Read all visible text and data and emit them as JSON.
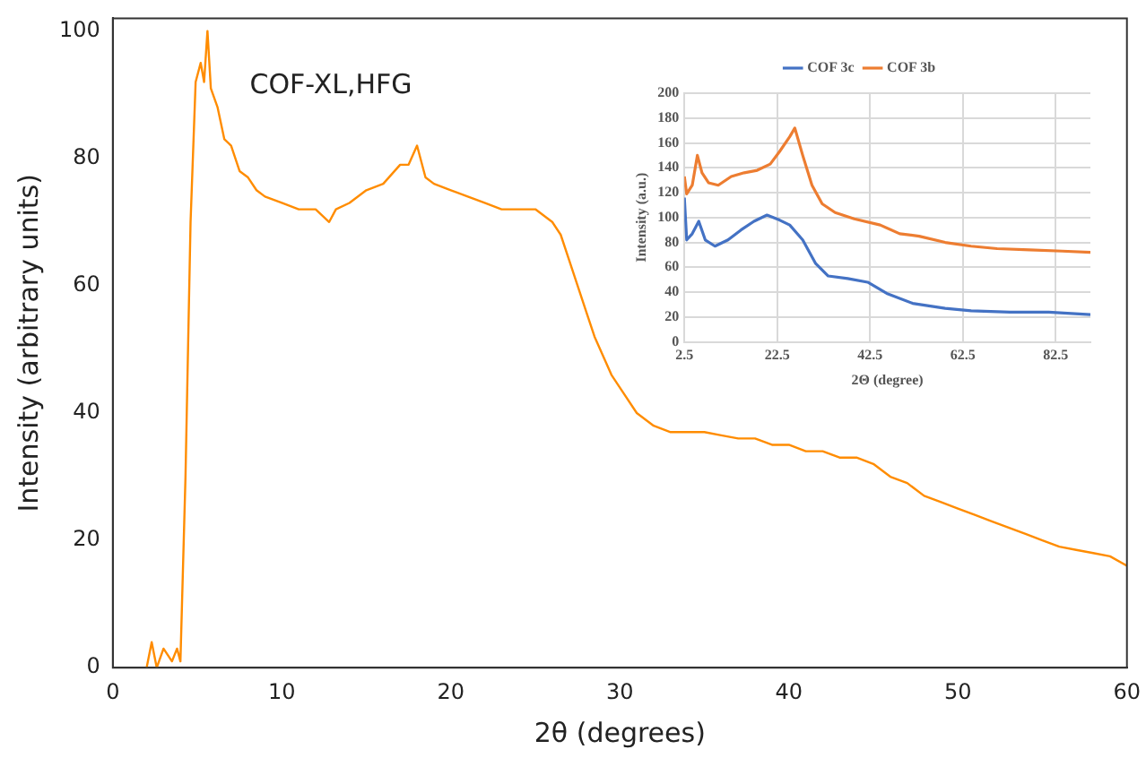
{
  "chart_data": [
    {
      "type": "line",
      "xlabel": "2θ (degrees)",
      "ylabel": "Intensity (arbitrary units)",
      "xlim": [
        0,
        60
      ],
      "xticks": [
        0,
        10,
        20,
        30,
        40,
        50,
        60
      ],
      "ylim": [
        0,
        102
      ],
      "yticks": [
        0,
        20,
        40,
        60,
        80,
        100
      ],
      "grid": false,
      "legend": false,
      "marker": "none",
      "line_style": "solid",
      "annotations": [
        "COF-XL,HFG"
      ],
      "series": [
        {
          "color": "#ff8c00",
          "x": [
            2.0,
            2.3,
            2.6,
            3.0,
            3.5,
            3.8,
            4.0,
            4.3,
            4.6,
            4.9,
            5.2,
            5.4,
            5.6,
            5.8,
            6.2,
            6.6,
            7,
            7.5,
            8,
            8.5,
            9,
            10,
            11,
            12,
            12.8,
            13.2,
            14,
            15,
            16,
            17,
            17.5,
            18,
            18.5,
            19,
            20,
            21,
            22,
            23,
            24,
            25,
            26,
            26.5,
            27,
            27.5,
            28,
            28.5,
            29,
            29.5,
            30,
            31,
            32,
            33,
            34,
            35,
            36,
            37,
            38,
            39,
            40,
            41,
            42,
            43,
            44,
            45,
            46,
            47,
            48,
            49,
            50,
            51,
            52,
            53,
            54,
            55,
            56,
            57,
            58,
            59,
            60
          ],
          "values": [
            0,
            4,
            0,
            3,
            1,
            3,
            1,
            30,
            70,
            92,
            95,
            92,
            100,
            91,
            88,
            83,
            82,
            78,
            77,
            75,
            74,
            73,
            72,
            72,
            70,
            72,
            73,
            75,
            76,
            79,
            79,
            82,
            77,
            76,
            75,
            74,
            73,
            72,
            72,
            72,
            70,
            68,
            64,
            60,
            56,
            52,
            49,
            46,
            44,
            40,
            38,
            37,
            37,
            37,
            36.5,
            36,
            36,
            35,
            35,
            34,
            34,
            33,
            33,
            32,
            30,
            29,
            27,
            26,
            25,
            24,
            23,
            22,
            21,
            20,
            19,
            18.5,
            18,
            17.5,
            16
          ]
        }
      ]
    },
    {
      "type": "line",
      "xlabel": "2Θ (degree)",
      "ylabel": "Intensity (a.u.)",
      "xlim": [
        2.5,
        90
      ],
      "xticks": [
        2.5,
        22.5,
        42.5,
        62.5,
        82.5
      ],
      "ylim": [
        0,
        200
      ],
      "yticks": [
        0,
        20,
        40,
        60,
        80,
        100,
        120,
        140,
        160,
        180,
        200
      ],
      "grid": true,
      "legend": "top",
      "marker": "none",
      "line_style": "solid",
      "series": [
        {
          "name": "COF 3c",
          "color": "#4472c4",
          "x": [
            2.5,
            3,
            4.2,
            5.6,
            7,
            9.1,
            11.9,
            14.7,
            17.5,
            20.3,
            23,
            25.2,
            28,
            30.8,
            33.5,
            37.7,
            42,
            46.1,
            51.7,
            58.7,
            64.3,
            72.7,
            81,
            90
          ],
          "values": [
            116,
            82,
            87,
            97,
            82,
            77,
            82,
            90,
            97,
            102,
            98,
            94,
            82,
            63,
            53,
            51,
            48,
            39,
            31,
            27,
            25,
            24,
            24,
            22
          ]
        },
        {
          "name": "COF 3b",
          "color": "#ed7d31",
          "x": [
            2.5,
            3,
            4.2,
            5.3,
            6.3,
            7.7,
            9.8,
            12.6,
            15.4,
            18.2,
            21,
            23,
            25.2,
            26.3,
            28,
            30,
            32.2,
            35,
            39.1,
            44.7,
            48.9,
            53.1,
            58.7,
            64.3,
            69.9,
            76.9,
            83.9,
            90
          ],
          "values": [
            133,
            119,
            126,
            150,
            136,
            128,
            126,
            133,
            136,
            138,
            143,
            153,
            165,
            172,
            150,
            126,
            111,
            104,
            99,
            94,
            87,
            85,
            80,
            77,
            75,
            74,
            73,
            72
          ]
        }
      ]
    }
  ]
}
